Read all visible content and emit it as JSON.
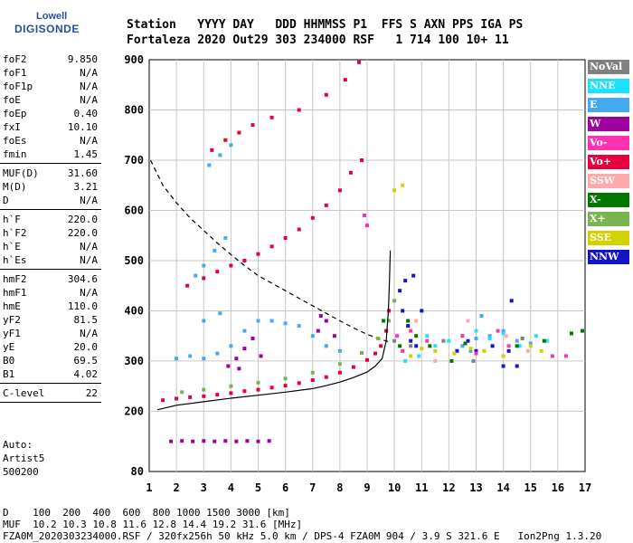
{
  "logo": {
    "brand": "Lowell",
    "name": "DIGISONDE"
  },
  "header": {
    "row1": "Station   YYYY DAY   DDD HHMMSS P1  FFS S AXN PPS IGA PS",
    "row2": "Fortaleza 2020 Out29 303 234000 RSF   1 714 100 10+ 11"
  },
  "params_groups": [
    [
      {
        "label": "foF2",
        "value": "9.850"
      },
      {
        "label": "foF1",
        "value": "N/A"
      },
      {
        "label": "foF1p",
        "value": "N/A"
      },
      {
        "label": "foE",
        "value": "N/A"
      },
      {
        "label": "foEp",
        "value": "0.40"
      },
      {
        "label": "fxI",
        "value": "10.10"
      },
      {
        "label": "foEs",
        "value": "N/A"
      },
      {
        "label": "fmin",
        "value": "1.45"
      }
    ],
    [
      {
        "label": "MUF(D)",
        "value": "31.60"
      },
      {
        "label": "M(D)",
        "value": "3.21"
      },
      {
        "label": "D",
        "value": "N/A"
      }
    ],
    [
      {
        "label": "h`F",
        "value": "220.0"
      },
      {
        "label": "h`F2",
        "value": "220.0"
      },
      {
        "label": "h`E",
        "value": "N/A"
      },
      {
        "label": "h`Es",
        "value": "N/A"
      }
    ],
    [
      {
        "label": "hmF2",
        "value": "304.6"
      },
      {
        "label": "hmF1",
        "value": "N/A"
      },
      {
        "label": "hmE",
        "value": "110.0"
      },
      {
        "label": "yF2",
        "value": "81.5"
      },
      {
        "label": "yF1",
        "value": "N/A"
      },
      {
        "label": "yE",
        "value": "20.0"
      },
      {
        "label": "B0",
        "value": "69.5"
      },
      {
        "label": "B1",
        "value": "4.02"
      }
    ],
    [
      {
        "label": "C-level",
        "value": "22"
      }
    ]
  ],
  "auto_block": {
    "line1": "Auto:",
    "line2": "Artist5",
    "line3": "500200"
  },
  "legend": [
    {
      "label": "NoVal",
      "color": "#808080"
    },
    {
      "label": "NNE",
      "color": "#1ee0ff"
    },
    {
      "label": "E",
      "color": "#46aaf0"
    },
    {
      "label": "W",
      "color": "#a000a0"
    },
    {
      "label": "Vo-",
      "color": "#ff32b4"
    },
    {
      "label": "Vo+",
      "color": "#e6003c"
    },
    {
      "label": "SSW",
      "color": "#ffaaaa"
    },
    {
      "label": "X-",
      "color": "#007800"
    },
    {
      "label": "X+",
      "color": "#78b450"
    },
    {
      "label": "SSE",
      "color": "#d2d200"
    },
    {
      "label": "NNW",
      "color": "#1414c8"
    }
  ],
  "footer": {
    "line1": "D    100  200  400  600  800 1000 1500 3000 [km]",
    "line2": "MUF  10.2 10.3 10.8 11.6 12.8 14.4 19.2 31.6 [MHz]",
    "line3": "FZA0M_2020303234000.RSF / 320fx256h 50 kHz 5.0 km / DPS-4 FZA0M 904 / 3.9 S 321.6 E   Ion2Png 1.3.20"
  },
  "chart_data": {
    "type": "scatter",
    "title": "",
    "xlabel": "",
    "ylabel": "",
    "xlim": [
      1,
      17
    ],
    "ylim": [
      80,
      900
    ],
    "x_ticks": [
      1,
      2,
      3,
      4,
      5,
      6,
      7,
      8,
      9,
      10,
      11,
      12,
      13,
      14,
      15,
      16,
      17
    ],
    "y_ticks": [
      80,
      200,
      300,
      400,
      500,
      600,
      700,
      800,
      900
    ],
    "grid": true,
    "legend_position": "right",
    "series": [
      {
        "name": "O-trace (Vo+)",
        "color": "#e6003c",
        "points": [
          [
            1.5,
            222
          ],
          [
            2,
            225
          ],
          [
            2.5,
            228
          ],
          [
            3,
            230
          ],
          [
            3.5,
            233
          ],
          [
            4,
            236
          ],
          [
            4.5,
            240
          ],
          [
            5,
            243
          ],
          [
            5.5,
            247
          ],
          [
            6,
            251
          ],
          [
            6.5,
            256
          ],
          [
            7,
            262
          ],
          [
            7.5,
            268
          ],
          [
            8,
            277
          ],
          [
            8.5,
            288
          ],
          [
            9,
            302
          ],
          [
            9.3,
            315
          ],
          [
            9.5,
            330
          ],
          [
            9.7,
            360
          ],
          [
            9.8,
            400
          ]
        ]
      },
      {
        "name": "2nd hop",
        "color": "#e6003c",
        "points": [
          [
            2.4,
            450
          ],
          [
            3,
            465
          ],
          [
            3.5,
            478
          ],
          [
            4,
            490
          ],
          [
            4.5,
            500
          ],
          [
            5,
            513
          ],
          [
            5.5,
            528
          ],
          [
            6,
            545
          ],
          [
            6.5,
            562
          ],
          [
            7,
            585
          ],
          [
            7.5,
            610
          ],
          [
            8,
            640
          ],
          [
            8.4,
            675
          ],
          [
            8.8,
            700
          ]
        ]
      },
      {
        "name": "3rd hop",
        "color": "#e6003c",
        "points": [
          [
            3.3,
            720
          ],
          [
            3.8,
            740
          ],
          [
            4.3,
            755
          ],
          [
            4.8,
            770
          ],
          [
            5.5,
            785
          ],
          [
            6.5,
            800
          ],
          [
            7.5,
            830
          ],
          [
            8.2,
            860
          ],
          [
            8.7,
            895
          ]
        ]
      },
      {
        "name": "X-trace (X+)",
        "color": "#78b450",
        "points": [
          [
            2.2,
            238
          ],
          [
            3,
            243
          ],
          [
            4,
            250
          ],
          [
            5,
            257
          ],
          [
            6,
            265
          ],
          [
            7,
            277
          ],
          [
            8,
            294
          ],
          [
            8.8,
            316
          ],
          [
            9.4,
            345
          ],
          [
            9.8,
            380
          ],
          [
            10,
            420
          ]
        ]
      },
      {
        "name": "W echoes",
        "color": "#a000a0",
        "points": [
          [
            1.8,
            140
          ],
          [
            2.2,
            141
          ],
          [
            2.6,
            140
          ],
          [
            3,
            141
          ],
          [
            3.4,
            140
          ],
          [
            3.8,
            141
          ],
          [
            4.2,
            140
          ],
          [
            4.6,
            141
          ],
          [
            5,
            140
          ],
          [
            5.4,
            141
          ],
          [
            3.9,
            290
          ],
          [
            4.2,
            305
          ],
          [
            4.5,
            325
          ],
          [
            4.8,
            345
          ],
          [
            5.1,
            310
          ],
          [
            4.3,
            285
          ],
          [
            7.2,
            360
          ],
          [
            7.5,
            380
          ],
          [
            7.8,
            350
          ],
          [
            7.3,
            390
          ]
        ]
      },
      {
        "name": "E echoes",
        "color": "#46aaf0",
        "points": [
          [
            2,
            305
          ],
          [
            2.5,
            310
          ],
          [
            3,
            305
          ],
          [
            3.5,
            315
          ],
          [
            4,
            330
          ],
          [
            4.5,
            360
          ],
          [
            5,
            380
          ],
          [
            5.5,
            380
          ],
          [
            6,
            375
          ],
          [
            6.5,
            370
          ],
          [
            7,
            350
          ],
          [
            7.5,
            330
          ],
          [
            8,
            320
          ],
          [
            3,
            380
          ],
          [
            3.6,
            395
          ],
          [
            2.7,
            470
          ],
          [
            3,
            490
          ],
          [
            3.4,
            520
          ],
          [
            3.8,
            545
          ],
          [
            3.2,
            690
          ],
          [
            3.6,
            710
          ],
          [
            4,
            730
          ],
          [
            12.5,
            330
          ],
          [
            13,
            345
          ],
          [
            13.5,
            350
          ],
          [
            14,
            360
          ],
          [
            14.5,
            340
          ],
          [
            15,
            335
          ],
          [
            13.2,
            390
          ],
          [
            12.8,
            320
          ]
        ]
      },
      {
        "name": "NNW echoes",
        "color": "#1414c8",
        "points": [
          [
            10.2,
            440
          ],
          [
            10.3,
            400
          ],
          [
            10.5,
            370
          ],
          [
            10.6,
            340
          ],
          [
            10.8,
            330
          ],
          [
            11,
            400
          ],
          [
            10.4,
            460
          ],
          [
            10.7,
            470
          ],
          [
            12.3,
            320
          ],
          [
            12.7,
            340
          ],
          [
            13.6,
            330
          ],
          [
            14.2,
            320
          ],
          [
            14.5,
            290
          ],
          [
            14,
            290
          ],
          [
            14.3,
            420
          ],
          [
            13,
            320
          ]
        ]
      },
      {
        "name": "NNE echoes",
        "color": "#1ee0ff",
        "points": [
          [
            10.4,
            300
          ],
          [
            10.9,
            310
          ],
          [
            11.2,
            350
          ],
          [
            11.5,
            330
          ],
          [
            12,
            340
          ],
          [
            12.5,
            350
          ],
          [
            13,
            360
          ],
          [
            13.5,
            345
          ],
          [
            14,
            355
          ],
          [
            14.6,
            330
          ],
          [
            15.2,
            350
          ],
          [
            15.6,
            340
          ]
        ]
      },
      {
        "name": "SSE echoes",
        "color": "#d2d200",
        "points": [
          [
            10.3,
            320
          ],
          [
            10.6,
            310
          ],
          [
            11,
            325
          ],
          [
            11.5,
            320
          ],
          [
            12.2,
            315
          ],
          [
            12.8,
            325
          ],
          [
            13.3,
            320
          ],
          [
            14,
            310
          ],
          [
            15,
            330
          ],
          [
            15.4,
            320
          ],
          [
            10.3,
            650
          ],
          [
            10,
            640
          ]
        ]
      },
      {
        "name": "Vo- echoes",
        "color": "#ff32b4",
        "points": [
          [
            10.1,
            350
          ],
          [
            10.3,
            320
          ],
          [
            10.6,
            360
          ],
          [
            11.2,
            340
          ],
          [
            12.5,
            350
          ],
          [
            13,
            315
          ],
          [
            13.8,
            360
          ],
          [
            14.2,
            330
          ],
          [
            15.8,
            310
          ],
          [
            16.3,
            310
          ],
          [
            8.9,
            590
          ],
          [
            9,
            570
          ]
        ]
      },
      {
        "name": "X- echoes",
        "color": "#007800",
        "points": [
          [
            10.2,
            330
          ],
          [
            10.5,
            380
          ],
          [
            10.8,
            350
          ],
          [
            11.3,
            330
          ],
          [
            12.1,
            300
          ],
          [
            12.6,
            335
          ],
          [
            14.5,
            330
          ],
          [
            15.5,
            340
          ],
          [
            16.5,
            355
          ],
          [
            16.9,
            360
          ],
          [
            9.6,
            380
          ]
        ]
      },
      {
        "name": "SSW echoes",
        "color": "#ffaaaa",
        "points": [
          [
            10.8,
            380
          ],
          [
            11.5,
            300
          ],
          [
            12.7,
            380
          ],
          [
            14.1,
            350
          ],
          [
            14.9,
            320
          ]
        ]
      },
      {
        "name": "NoVal echoes",
        "color": "#808080",
        "points": [
          [
            10,
            340
          ],
          [
            10.6,
            330
          ],
          [
            11.8,
            340
          ],
          [
            12.9,
            300
          ],
          [
            14.7,
            345
          ]
        ]
      }
    ],
    "profile_curve": {
      "color": "#000000",
      "points": [
        [
          1.3,
          203
        ],
        [
          2,
          212
        ],
        [
          3,
          219
        ],
        [
          4,
          226
        ],
        [
          5,
          232
        ],
        [
          6,
          238
        ],
        [
          7,
          245
        ],
        [
          7.5,
          251
        ],
        [
          8,
          258
        ],
        [
          8.5,
          267
        ],
        [
          9,
          278
        ],
        [
          9.3,
          290
        ],
        [
          9.55,
          305
        ],
        [
          9.7,
          340
        ],
        [
          9.78,
          400
        ],
        [
          9.82,
          460
        ],
        [
          9.85,
          520
        ]
      ]
    },
    "muf_curve": {
      "color": "#000000",
      "dashed": true,
      "points": [
        [
          1.05,
          700
        ],
        [
          1.5,
          650
        ],
        [
          2,
          615
        ],
        [
          2.5,
          585
        ],
        [
          3,
          560
        ],
        [
          3.5,
          535
        ],
        [
          4,
          512
        ],
        [
          4.5,
          490
        ],
        [
          5,
          470
        ],
        [
          5.5,
          455
        ],
        [
          6,
          440
        ],
        [
          6.5,
          425
        ],
        [
          7,
          410
        ],
        [
          7.5,
          395
        ],
        [
          8,
          380
        ],
        [
          8.5,
          366
        ],
        [
          9,
          353
        ],
        [
          9.4,
          345
        ],
        [
          9.8,
          338
        ]
      ]
    }
  }
}
